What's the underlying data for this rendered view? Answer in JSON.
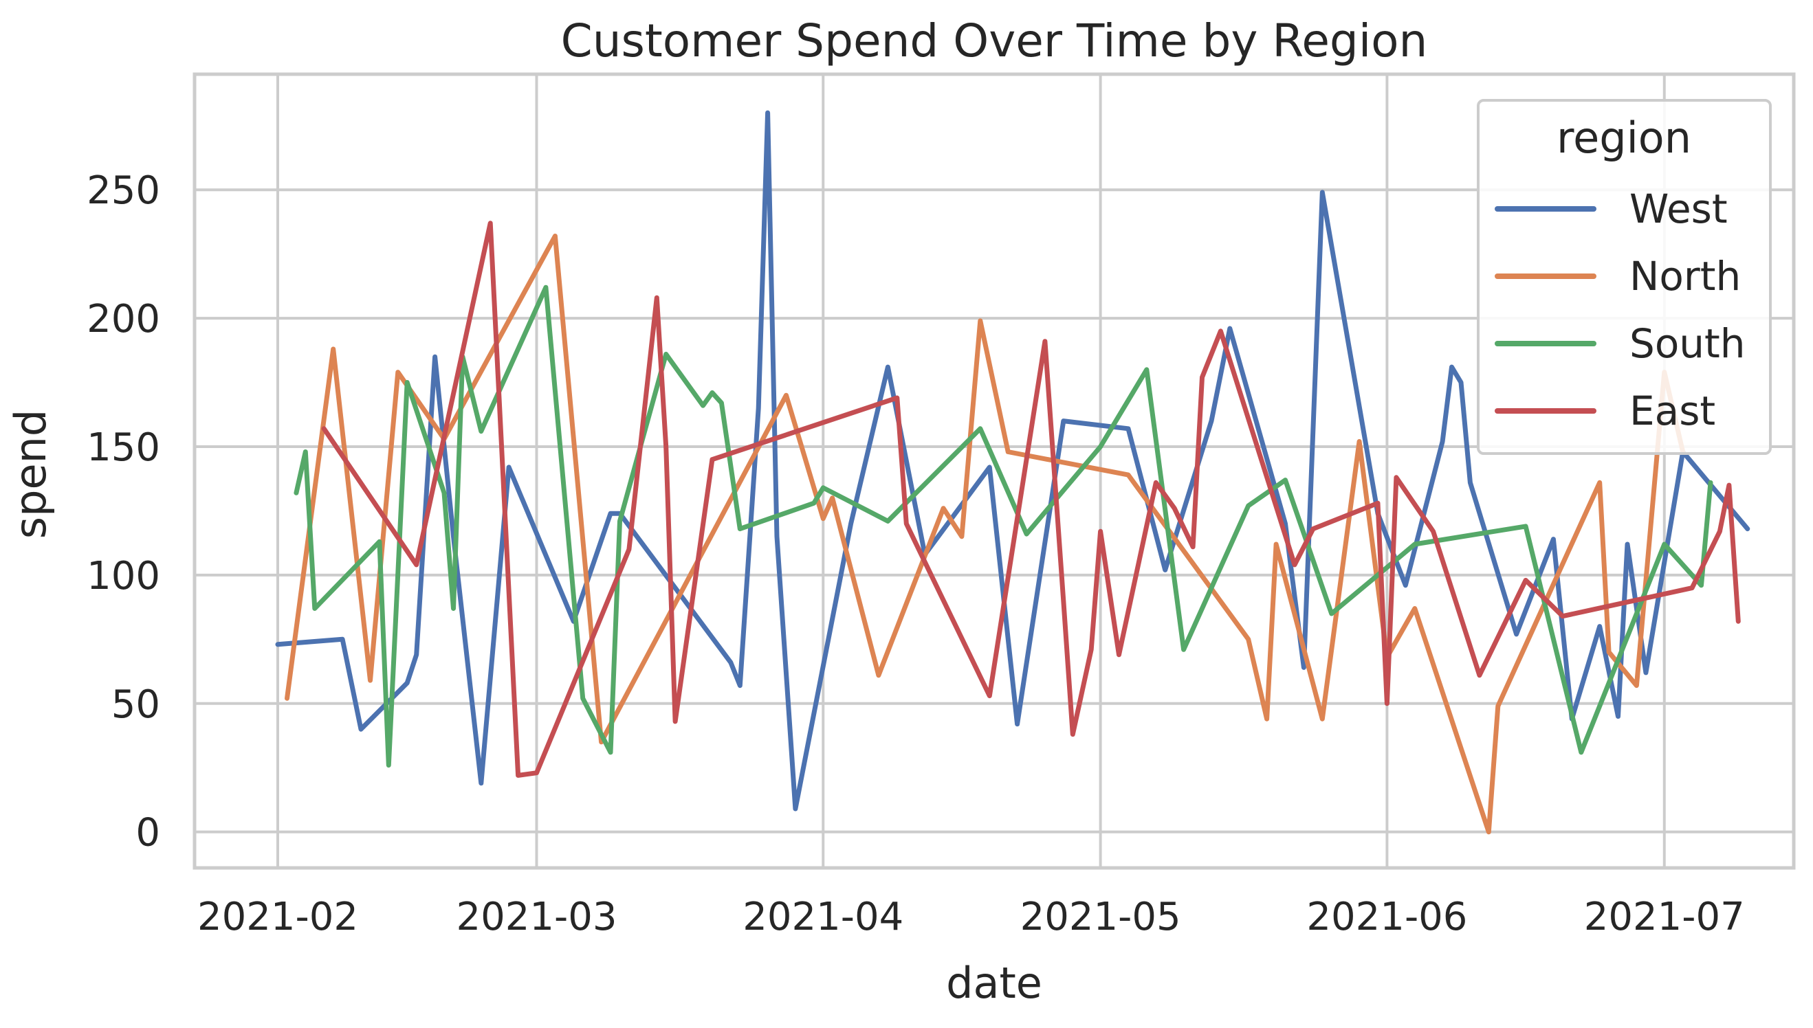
{
  "chart_data": {
    "type": "line",
    "title": "Customer Spend Over Time by Region",
    "xlabel": "date",
    "ylabel": "spend",
    "xlim": [
      "2021-01-23",
      "2021-07-15"
    ],
    "ylim": [
      -14,
      295
    ],
    "x_ticks": [
      "2021-02-01",
      "2021-03-01",
      "2021-04-01",
      "2021-05-01",
      "2021-06-01",
      "2021-07-01"
    ],
    "x_tick_labels": [
      "2021-02",
      "2021-03",
      "2021-04",
      "2021-05",
      "2021-06",
      "2021-07"
    ],
    "y_ticks": [
      0,
      50,
      100,
      150,
      200,
      250
    ],
    "y_tick_labels": [
      "0",
      "50",
      "100",
      "150",
      "200",
      "250"
    ],
    "grid": true,
    "legend": {
      "title": "region",
      "position": "top-right"
    },
    "series": [
      {
        "name": "West",
        "color": "#4c72b0",
        "points": [
          [
            "2021-02-01",
            73
          ],
          [
            "2021-02-08",
            75
          ],
          [
            "2021-02-10",
            40
          ],
          [
            "2021-02-15",
            58
          ],
          [
            "2021-02-16",
            69
          ],
          [
            "2021-02-18",
            185
          ],
          [
            "2021-02-20",
            115
          ],
          [
            "2021-02-23",
            19
          ],
          [
            "2021-02-26",
            142
          ],
          [
            "2021-03-05",
            82
          ],
          [
            "2021-03-09",
            124
          ],
          [
            "2021-03-10",
            124
          ],
          [
            "2021-03-22",
            66
          ],
          [
            "2021-03-23",
            57
          ],
          [
            "2021-03-25",
            165
          ],
          [
            "2021-03-26",
            280
          ],
          [
            "2021-03-27",
            115
          ],
          [
            "2021-03-29",
            9
          ],
          [
            "2021-04-04",
            120
          ],
          [
            "2021-04-08",
            181
          ],
          [
            "2021-04-12",
            108
          ],
          [
            "2021-04-19",
            142
          ],
          [
            "2021-04-22",
            42
          ],
          [
            "2021-04-27",
            160
          ],
          [
            "2021-05-04",
            157
          ],
          [
            "2021-05-08",
            102
          ],
          [
            "2021-05-13",
            160
          ],
          [
            "2021-05-15",
            196
          ],
          [
            "2021-05-21",
            120
          ],
          [
            "2021-05-23",
            64
          ],
          [
            "2021-05-25",
            249
          ],
          [
            "2021-05-31",
            124
          ],
          [
            "2021-06-03",
            96
          ],
          [
            "2021-06-07",
            152
          ],
          [
            "2021-06-08",
            181
          ],
          [
            "2021-06-09",
            175
          ],
          [
            "2021-06-10",
            136
          ],
          [
            "2021-06-15",
            77
          ],
          [
            "2021-06-19",
            114
          ],
          [
            "2021-06-21",
            44
          ],
          [
            "2021-06-24",
            80
          ],
          [
            "2021-06-26",
            45
          ],
          [
            "2021-06-27",
            112
          ],
          [
            "2021-06-29",
            62
          ],
          [
            "2021-07-03",
            148
          ],
          [
            "2021-07-10",
            118
          ]
        ]
      },
      {
        "name": "North",
        "color": "#dd8452",
        "points": [
          [
            "2021-02-02",
            52
          ],
          [
            "2021-02-07",
            188
          ],
          [
            "2021-02-11",
            59
          ],
          [
            "2021-02-14",
            179
          ],
          [
            "2021-02-19",
            153
          ],
          [
            "2021-03-03",
            232
          ],
          [
            "2021-03-08",
            35
          ],
          [
            "2021-03-28",
            170
          ],
          [
            "2021-04-01",
            122
          ],
          [
            "2021-04-02",
            130
          ],
          [
            "2021-04-07",
            61
          ],
          [
            "2021-04-14",
            126
          ],
          [
            "2021-04-16",
            115
          ],
          [
            "2021-04-18",
            199
          ],
          [
            "2021-04-21",
            148
          ],
          [
            "2021-05-04",
            139
          ],
          [
            "2021-05-17",
            75
          ],
          [
            "2021-05-19",
            44
          ],
          [
            "2021-05-20",
            112
          ],
          [
            "2021-05-25",
            44
          ],
          [
            "2021-05-29",
            152
          ],
          [
            "2021-06-01",
            68
          ],
          [
            "2021-06-04",
            87
          ],
          [
            "2021-06-12",
            0
          ],
          [
            "2021-06-13",
            49
          ],
          [
            "2021-06-24",
            136
          ],
          [
            "2021-06-25",
            70
          ],
          [
            "2021-06-28",
            57
          ],
          [
            "2021-07-01",
            179
          ],
          [
            "2021-07-03",
            148
          ]
        ]
      },
      {
        "name": "South",
        "color": "#55a868",
        "points": [
          [
            "2021-02-03",
            132
          ],
          [
            "2021-02-04",
            148
          ],
          [
            "2021-02-05",
            87
          ],
          [
            "2021-02-12",
            113
          ],
          [
            "2021-02-13",
            26
          ],
          [
            "2021-02-15",
            175
          ],
          [
            "2021-02-19",
            132
          ],
          [
            "2021-02-20",
            87
          ],
          [
            "2021-02-21",
            185
          ],
          [
            "2021-02-23",
            156
          ],
          [
            "2021-03-02",
            212
          ],
          [
            "2021-03-06",
            52
          ],
          [
            "2021-03-09",
            31
          ],
          [
            "2021-03-10",
            121
          ],
          [
            "2021-03-15",
            186
          ],
          [
            "2021-03-19",
            166
          ],
          [
            "2021-03-20",
            171
          ],
          [
            "2021-03-21",
            167
          ],
          [
            "2021-03-23",
            118
          ],
          [
            "2021-03-31",
            128
          ],
          [
            "2021-04-01",
            134
          ],
          [
            "2021-04-08",
            121
          ],
          [
            "2021-04-18",
            157
          ],
          [
            "2021-04-23",
            116
          ],
          [
            "2021-05-01",
            150
          ],
          [
            "2021-05-06",
            180
          ],
          [
            "2021-05-10",
            71
          ],
          [
            "2021-05-17",
            127
          ],
          [
            "2021-05-21",
            137
          ],
          [
            "2021-05-26",
            85
          ],
          [
            "2021-06-04",
            112
          ],
          [
            "2021-06-16",
            119
          ],
          [
            "2021-06-22",
            31
          ],
          [
            "2021-07-01",
            112
          ],
          [
            "2021-07-05",
            96
          ],
          [
            "2021-07-06",
            136
          ]
        ]
      },
      {
        "name": "East",
        "color": "#c44e52",
        "points": [
          [
            "2021-02-06",
            157
          ],
          [
            "2021-02-16",
            104
          ],
          [
            "2021-02-24",
            237
          ],
          [
            "2021-02-27",
            22
          ],
          [
            "2021-03-01",
            23
          ],
          [
            "2021-03-11",
            110
          ],
          [
            "2021-03-14",
            208
          ],
          [
            "2021-03-15",
            150
          ],
          [
            "2021-03-16",
            43
          ],
          [
            "2021-03-20",
            145
          ],
          [
            "2021-04-09",
            169
          ],
          [
            "2021-04-10",
            120
          ],
          [
            "2021-04-19",
            53
          ],
          [
            "2021-04-25",
            191
          ],
          [
            "2021-04-27",
            90
          ],
          [
            "2021-04-28",
            38
          ],
          [
            "2021-04-30",
            71
          ],
          [
            "2021-05-01",
            117
          ],
          [
            "2021-05-03",
            69
          ],
          [
            "2021-05-07",
            136
          ],
          [
            "2021-05-09",
            126
          ],
          [
            "2021-05-11",
            111
          ],
          [
            "2021-05-12",
            177
          ],
          [
            "2021-05-14",
            195
          ],
          [
            "2021-05-22",
            104
          ],
          [
            "2021-05-24",
            118
          ],
          [
            "2021-05-31",
            128
          ],
          [
            "2021-06-01",
            50
          ],
          [
            "2021-06-02",
            138
          ],
          [
            "2021-06-06",
            117
          ],
          [
            "2021-06-11",
            61
          ],
          [
            "2021-06-16",
            98
          ],
          [
            "2021-06-20",
            84
          ],
          [
            "2021-07-04",
            95
          ],
          [
            "2021-07-07",
            117
          ],
          [
            "2021-07-08",
            135
          ],
          [
            "2021-07-09",
            82
          ]
        ]
      }
    ]
  }
}
